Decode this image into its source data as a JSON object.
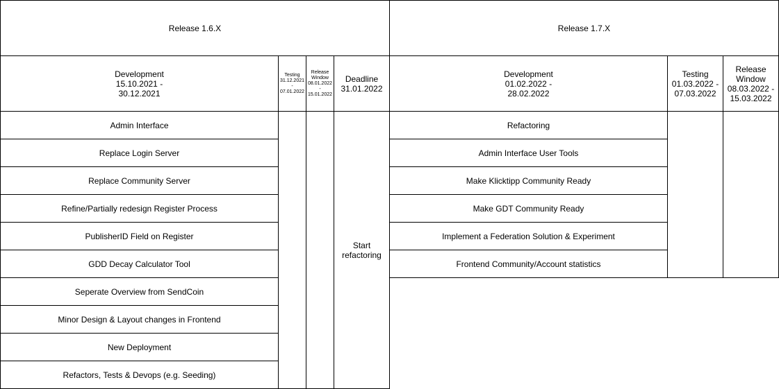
{
  "release_16": {
    "title": "Release 1.6.X",
    "development": "Development\n15.10.2021 -\n30.12.2021",
    "testing": "Testing\n31.12.2021\n-\n07.01.2022",
    "release_window": "Release\nWindow\n08.01.2022\n-\n15.01.2022",
    "deadline": "Deadline\n31.01.2022",
    "deadline_note": "Start\nrefactoring",
    "items": [
      "Admin Interface",
      "Replace Login Server",
      "Replace Community Server",
      "Refine/Partially redesign Register Process",
      "PublisherID Field on Register",
      "GDD Decay Calculator Tool",
      "Seperate Overview from SendCoin",
      "Minor Design & Layout changes in Frontend",
      "New Deployment",
      "Refactors, Tests & Devops (e.g. Seeding)"
    ]
  },
  "release_17": {
    "title": "Release 1.7.X",
    "development": "Development\n01.02.2022 -\n28.02.2022",
    "testing": "Testing\n01.03.2022 -\n07.03.2022",
    "release_window": "Release\nWindow\n08.03.2022 -\n15.03.2022",
    "items": [
      "Refactoring",
      "Admin Interface User Tools",
      "Make Klicktipp Community Ready",
      "Make GDT Community Ready",
      "Implement a Federation Solution & Experiment",
      "Frontend Community/Account statistics"
    ]
  }
}
